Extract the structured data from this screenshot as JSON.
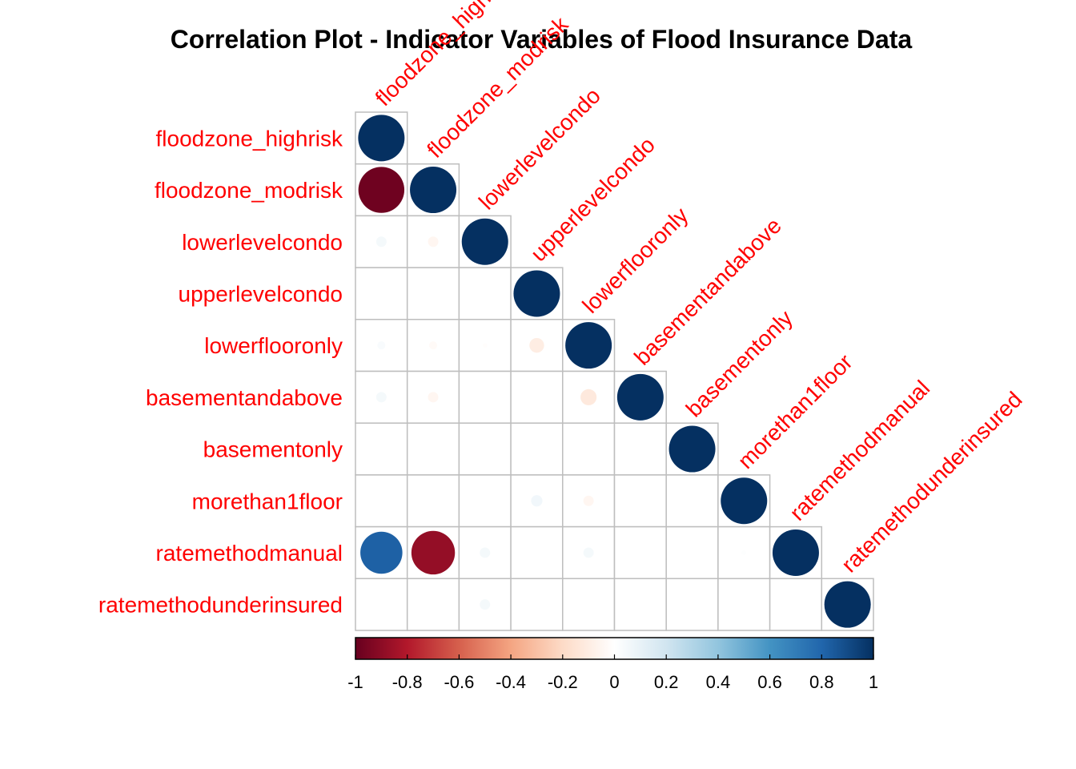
{
  "chart_data": {
    "type": "heatmap",
    "subtype": "correlation-circle-lower-triangle",
    "title": "Correlation Plot - Indicator Variables of Flood Insurance Data",
    "variables": [
      "floodzone_highrisk",
      "floodzone_modrisk",
      "lowerlevelcondo",
      "upperlevelcondo",
      "lowerflooronly",
      "basementandabove",
      "basementonly",
      "morethan1floor",
      "ratemethodmanual",
      "ratemethodunderinsured"
    ],
    "matrix": [
      [
        1,
        -0.98,
        0.05,
        0.0,
        0.03,
        0.05,
        0.0,
        0.0,
        0.82,
        0.0
      ],
      [
        -0.98,
        1,
        -0.05,
        0.0,
        -0.03,
        -0.05,
        0.0,
        0.0,
        -0.88,
        0.0
      ],
      [
        0.05,
        -0.05,
        1,
        0.0,
        -0.01,
        0.0,
        0.0,
        0.0,
        0.05,
        0.05
      ],
      [
        0.0,
        0.0,
        0.0,
        1,
        -0.1,
        0.0,
        0.0,
        0.06,
        0.0,
        0.0
      ],
      [
        0.03,
        -0.03,
        -0.01,
        -0.1,
        1,
        -0.12,
        0.0,
        -0.05,
        0.05,
        0.0
      ],
      [
        0.05,
        -0.05,
        0.0,
        0.0,
        -0.12,
        1,
        0.0,
        0.0,
        0.0,
        0.0
      ],
      [
        0.0,
        0.0,
        0.0,
        0.0,
        0.0,
        0.0,
        1,
        0.0,
        0.0,
        0.0
      ],
      [
        0.0,
        0.0,
        0.0,
        0.06,
        -0.05,
        0.0,
        0.0,
        1,
        0.01,
        0.0
      ],
      [
        0.82,
        -0.88,
        0.05,
        0.0,
        0.05,
        0.0,
        0.0,
        0.01,
        1,
        0.0
      ],
      [
        0.0,
        0.0,
        0.05,
        0.0,
        0.0,
        0.0,
        0.0,
        0.0,
        0.0,
        1
      ]
    ],
    "colorbar": {
      "ticks": [
        "-1",
        "-0.8",
        "-0.6",
        "-0.4",
        "-0.2",
        "0",
        "0.2",
        "0.4",
        "0.6",
        "0.8",
        "1"
      ],
      "range": [
        -1,
        1
      ],
      "colors": [
        "#67001F",
        "#B2182B",
        "#D6604D",
        "#F4A582",
        "#FDDBC7",
        "#FFFFFF",
        "#D1E5F0",
        "#92C5DE",
        "#4393C3",
        "#2166AC",
        "#053061"
      ]
    },
    "label_color": "#FF0000",
    "grid_color": "#BEBEBE"
  }
}
